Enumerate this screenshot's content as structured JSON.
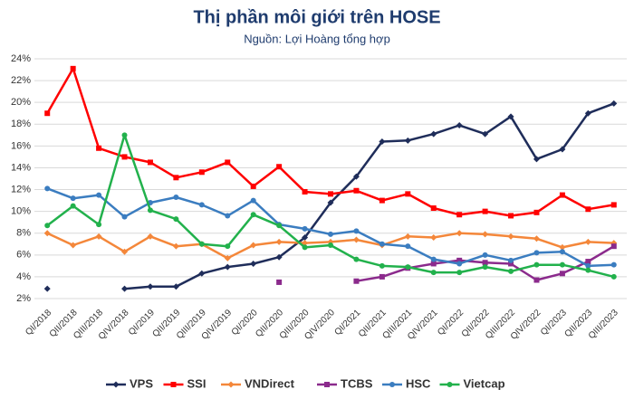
{
  "chart_data": {
    "type": "line",
    "title": "Thị phần môi giới trên HOSE",
    "subtitle": "Nguồn: Lợi Hoàng tổng hợp",
    "categories": [
      "QI/2018",
      "QII/2018",
      "QIII/2018",
      "QIV/2018",
      "QI/2019",
      "QII/2019",
      "QIII/2019",
      "QIV/2019",
      "QI/2020",
      "QII/2020",
      "QIII/2020",
      "QIV/2020",
      "QI/2021",
      "QII/2021",
      "QIII/2021",
      "QIV/2021",
      "QI/2022",
      "QII/2022",
      "QIII/2022",
      "QIV/2022",
      "QI/2023",
      "QII/2023",
      "QIII/2023"
    ],
    "series": [
      {
        "name": "VPS",
        "color": "#1f2d5a",
        "values": [
          2.9,
          null,
          null,
          2.9,
          3.1,
          3.1,
          4.3,
          4.9,
          5.2,
          5.8,
          7.6,
          10.8,
          13.2,
          16.4,
          16.5,
          17.1,
          17.9,
          17.1,
          18.7,
          14.8,
          15.7,
          19.0,
          19.9
        ]
      },
      {
        "name": "SSI",
        "color": "#ff0000",
        "values": [
          19.0,
          23.1,
          15.8,
          15.0,
          14.5,
          13.1,
          13.6,
          14.5,
          12.3,
          14.1,
          11.8,
          11.6,
          11.9,
          11.0,
          11.6,
          10.3,
          9.7,
          10.0,
          9.6,
          9.9,
          11.5,
          10.2,
          10.6
        ]
      },
      {
        "name": "VNDirect",
        "color": "#f4873a",
        "values": [
          8.0,
          6.9,
          7.7,
          6.3,
          7.7,
          6.8,
          7.0,
          5.7,
          6.9,
          7.2,
          7.1,
          7.2,
          7.4,
          6.9,
          7.7,
          7.6,
          8.0,
          7.9,
          7.7,
          7.5,
          6.7,
          7.2,
          7.1
        ]
      },
      {
        "name": "TCBS",
        "color": "#8b2a8c",
        "values": [
          null,
          null,
          null,
          null,
          null,
          null,
          null,
          null,
          null,
          3.5,
          null,
          null,
          3.6,
          4.0,
          4.8,
          5.2,
          5.5,
          5.3,
          5.2,
          3.7,
          4.3,
          5.4,
          6.8
        ]
      },
      {
        "name": "HSC",
        "color": "#3b7dc0",
        "values": [
          12.1,
          11.2,
          11.5,
          9.5,
          10.8,
          11.3,
          10.6,
          9.6,
          11.0,
          8.8,
          8.4,
          7.9,
          8.2,
          7.0,
          6.8,
          5.6,
          5.2,
          6.0,
          5.5,
          6.2,
          6.3,
          5.0,
          5.1
        ]
      },
      {
        "name": "Vietcap",
        "color": "#22b14c",
        "values": [
          8.7,
          10.5,
          8.8,
          17.0,
          10.1,
          9.3,
          7.0,
          6.8,
          9.7,
          8.7,
          6.7,
          6.9,
          5.6,
          5.0,
          4.9,
          4.4,
          4.4,
          4.9,
          4.5,
          5.1,
          5.1,
          4.6,
          4.0
        ]
      }
    ],
    "ylim": [
      2,
      24
    ],
    "yticks": [
      {
        "value": 2,
        "label": "2%"
      },
      {
        "value": 4,
        "label": "4%"
      },
      {
        "value": 6,
        "label": "6%"
      },
      {
        "value": 8,
        "label": "8%"
      },
      {
        "value": 10,
        "label": "10%"
      },
      {
        "value": 12,
        "label": "12%"
      },
      {
        "value": 14,
        "label": "14%"
      },
      {
        "value": 16,
        "label": "16%"
      },
      {
        "value": 18,
        "label": "18%"
      },
      {
        "value": 20,
        "label": "20%"
      },
      {
        "value": 22,
        "label": "22%"
      },
      {
        "value": 24,
        "label": "24%"
      }
    ],
    "grid": true,
    "legend": "bottom"
  }
}
